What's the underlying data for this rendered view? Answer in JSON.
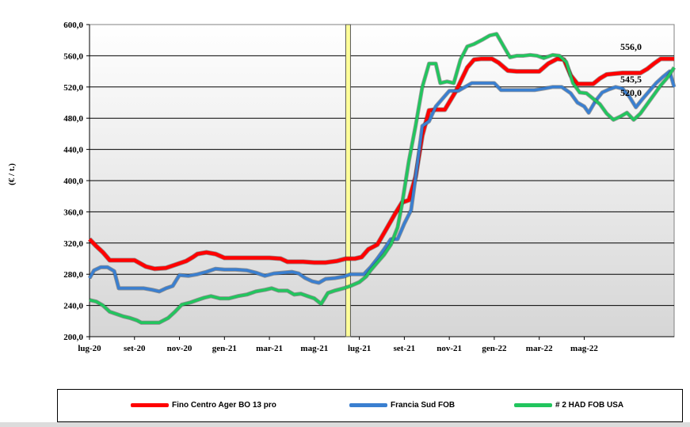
{
  "chart_data": {
    "type": "line",
    "ylabel": "(€ / t.)",
    "ylim": [
      200,
      600
    ],
    "yticks": [
      "200,0",
      "240,0",
      "280,0",
      "320,0",
      "360,0",
      "400,0",
      "440,0",
      "480,0",
      "520,0",
      "560,0",
      "600,0"
    ],
    "xticks": [
      "lug-20",
      "set-20",
      "nov-20",
      "gen-21",
      "mar-21",
      "mag-21",
      "lug-21",
      "set-21",
      "nov-21",
      "gen-22",
      "mar-22",
      "mag-22"
    ],
    "grid": true,
    "legend_position": "bottom",
    "marker_month_index": 11.5,
    "series": [
      {
        "name": "Fino Centro Ager BO 13 pro",
        "color": "#ff0000",
        "points": [
          [
            0,
            325
          ],
          [
            0.3,
            316
          ],
          [
            0.6,
            308
          ],
          [
            0.9,
            298
          ],
          [
            1.5,
            298
          ],
          [
            2,
            298
          ],
          [
            2.5,
            290
          ],
          [
            2.9,
            287
          ],
          [
            3.4,
            288
          ],
          [
            3.8,
            292
          ],
          [
            4.3,
            297
          ],
          [
            4.6,
            302
          ],
          [
            4.8,
            306
          ],
          [
            5.2,
            308
          ],
          [
            5.6,
            306
          ],
          [
            6,
            301
          ],
          [
            7,
            301
          ],
          [
            8,
            301
          ],
          [
            8.5,
            300
          ],
          [
            8.8,
            296
          ],
          [
            9.5,
            296
          ],
          [
            10,
            295
          ],
          [
            10.5,
            295
          ],
          [
            11,
            297
          ],
          [
            11.4,
            300
          ],
          [
            11.8,
            300
          ],
          [
            12.1,
            302
          ],
          [
            12.4,
            312
          ],
          [
            12.8,
            318
          ],
          [
            13.2,
            338
          ],
          [
            13.6,
            358
          ],
          [
            13.9,
            372
          ],
          [
            14.2,
            375
          ],
          [
            14.5,
            405
          ],
          [
            14.8,
            458
          ],
          [
            15.1,
            490
          ],
          [
            15.4,
            491
          ],
          [
            15.8,
            491
          ],
          [
            16.3,
            515
          ],
          [
            16.8,
            545
          ],
          [
            17.1,
            555
          ],
          [
            17.4,
            556
          ],
          [
            17.9,
            556
          ],
          [
            18.2,
            551
          ],
          [
            18.6,
            541
          ],
          [
            19,
            540
          ],
          [
            19.5,
            540
          ],
          [
            20,
            540
          ],
          [
            20.4,
            550
          ],
          [
            20.8,
            556
          ],
          [
            21.1,
            555
          ],
          [
            21.4,
            535
          ],
          [
            21.7,
            524
          ],
          [
            22,
            524
          ],
          [
            22.4,
            524
          ],
          [
            22.7,
            531
          ],
          [
            23,
            536
          ],
          [
            23.3,
            537
          ],
          [
            23.7,
            538
          ],
          [
            24,
            538
          ],
          [
            24.5,
            538
          ],
          [
            24.8,
            543
          ],
          [
            25.1,
            550
          ],
          [
            25.4,
            556
          ],
          [
            26,
            556
          ]
        ]
      },
      {
        "name": "Francia Sud FOB",
        "color": "#3a7fd0",
        "points": [
          [
            0,
            275
          ],
          [
            0.2,
            285
          ],
          [
            0.5,
            289
          ],
          [
            0.8,
            289
          ],
          [
            1.1,
            284
          ],
          [
            1.3,
            262
          ],
          [
            1.6,
            262
          ],
          [
            2,
            262
          ],
          [
            2.4,
            262
          ],
          [
            2.8,
            260
          ],
          [
            3.1,
            258
          ],
          [
            3.4,
            262
          ],
          [
            3.7,
            265
          ],
          [
            4,
            279
          ],
          [
            4.4,
            278
          ],
          [
            4.8,
            280
          ],
          [
            5.2,
            283
          ],
          [
            5.6,
            287
          ],
          [
            6,
            286
          ],
          [
            6.5,
            286
          ],
          [
            7,
            285
          ],
          [
            7.4,
            282
          ],
          [
            7.8,
            278
          ],
          [
            8.2,
            281
          ],
          [
            8.6,
            282
          ],
          [
            9,
            283
          ],
          [
            9.3,
            281
          ],
          [
            9.6,
            275
          ],
          [
            9.9,
            271
          ],
          [
            10.2,
            269
          ],
          [
            10.5,
            274
          ],
          [
            10.9,
            275
          ],
          [
            11.3,
            277
          ],
          [
            11.6,
            280
          ],
          [
            11.9,
            280
          ],
          [
            12.2,
            280
          ],
          [
            12.5,
            289
          ],
          [
            12.8,
            300
          ],
          [
            13.1,
            312
          ],
          [
            13.4,
            325
          ],
          [
            13.7,
            325
          ],
          [
            14,
            345
          ],
          [
            14.3,
            362
          ],
          [
            14.6,
            425
          ],
          [
            14.8,
            470
          ],
          [
            15.1,
            476
          ],
          [
            15.4,
            495
          ],
          [
            15.7,
            505
          ],
          [
            16,
            515
          ],
          [
            16.4,
            515
          ],
          [
            16.7,
            520
          ],
          [
            17,
            525
          ],
          [
            17.5,
            525
          ],
          [
            18,
            525
          ],
          [
            18.3,
            516
          ],
          [
            18.8,
            516
          ],
          [
            19.3,
            516
          ],
          [
            19.8,
            516
          ],
          [
            20.2,
            518
          ],
          [
            20.6,
            520
          ],
          [
            21,
            520
          ],
          [
            21.4,
            512
          ],
          [
            21.7,
            500
          ],
          [
            22,
            495
          ],
          [
            22.2,
            487
          ],
          [
            22.5,
            502
          ],
          [
            22.8,
            513
          ],
          [
            23.1,
            517
          ],
          [
            23.4,
            520
          ],
          [
            23.7,
            518
          ],
          [
            24,
            508
          ],
          [
            24.3,
            494
          ],
          [
            24.6,
            505
          ],
          [
            24.9,
            515
          ],
          [
            25.2,
            525
          ],
          [
            25.5,
            533
          ],
          [
            25.8,
            540
          ],
          [
            26,
            520
          ]
        ]
      },
      {
        "name": "# 2 HAD FOB USA",
        "color": "#22c55e",
        "points": [
          [
            0,
            247
          ],
          [
            0.3,
            245
          ],
          [
            0.6,
            240
          ],
          [
            0.9,
            232
          ],
          [
            1.2,
            229
          ],
          [
            1.5,
            226
          ],
          [
            1.8,
            224
          ],
          [
            2.1,
            221
          ],
          [
            2.3,
            218
          ],
          [
            2.7,
            218
          ],
          [
            3.1,
            218
          ],
          [
            3.5,
            224
          ],
          [
            3.8,
            232
          ],
          [
            4.1,
            241
          ],
          [
            4.5,
            244
          ],
          [
            4.8,
            247
          ],
          [
            5.1,
            250
          ],
          [
            5.4,
            252
          ],
          [
            5.8,
            249
          ],
          [
            6.2,
            249
          ],
          [
            6.6,
            252
          ],
          [
            7,
            254
          ],
          [
            7.4,
            258
          ],
          [
            7.8,
            260
          ],
          [
            8.1,
            262
          ],
          [
            8.4,
            259
          ],
          [
            8.8,
            259
          ],
          [
            9.1,
            254
          ],
          [
            9.4,
            255
          ],
          [
            9.7,
            252
          ],
          [
            10,
            249
          ],
          [
            10.3,
            242
          ],
          [
            10.6,
            256
          ],
          [
            10.9,
            259
          ],
          [
            11.3,
            262
          ],
          [
            11.6,
            265
          ],
          [
            12,
            270
          ],
          [
            12.3,
            277
          ],
          [
            12.5,
            285
          ],
          [
            12.8,
            295
          ],
          [
            13.1,
            305
          ],
          [
            13.4,
            318
          ],
          [
            13.7,
            340
          ],
          [
            13.9,
            370
          ],
          [
            14.2,
            425
          ],
          [
            14.5,
            470
          ],
          [
            14.8,
            520
          ],
          [
            15.1,
            550
          ],
          [
            15.4,
            550
          ],
          [
            15.6,
            525
          ],
          [
            15.9,
            527
          ],
          [
            16.2,
            525
          ],
          [
            16.5,
            555
          ],
          [
            16.8,
            572
          ],
          [
            17.1,
            575
          ],
          [
            17.5,
            581
          ],
          [
            17.8,
            586
          ],
          [
            18.1,
            588
          ],
          [
            18.4,
            573
          ],
          [
            18.7,
            558
          ],
          [
            19,
            560
          ],
          [
            19.3,
            560
          ],
          [
            19.6,
            561
          ],
          [
            19.9,
            560
          ],
          [
            20.2,
            557
          ],
          [
            20.6,
            561
          ],
          [
            20.9,
            560
          ],
          [
            21.2,
            552
          ],
          [
            21.5,
            525
          ],
          [
            21.8,
            513
          ],
          [
            22.1,
            512
          ],
          [
            22.4,
            505
          ],
          [
            22.7,
            498
          ],
          [
            23,
            486
          ],
          [
            23.3,
            478
          ],
          [
            23.6,
            482
          ],
          [
            23.9,
            487
          ],
          [
            24.2,
            478
          ],
          [
            24.5,
            486
          ],
          [
            24.8,
            498
          ],
          [
            25.1,
            510
          ],
          [
            25.4,
            522
          ],
          [
            25.7,
            532
          ],
          [
            26,
            545
          ]
        ]
      }
    ],
    "annotations": [
      {
        "text": "556,0",
        "value": 556
      },
      {
        "text": "545,5",
        "value": 545.5
      },
      {
        "text": "520,0",
        "value": 520
      }
    ]
  }
}
